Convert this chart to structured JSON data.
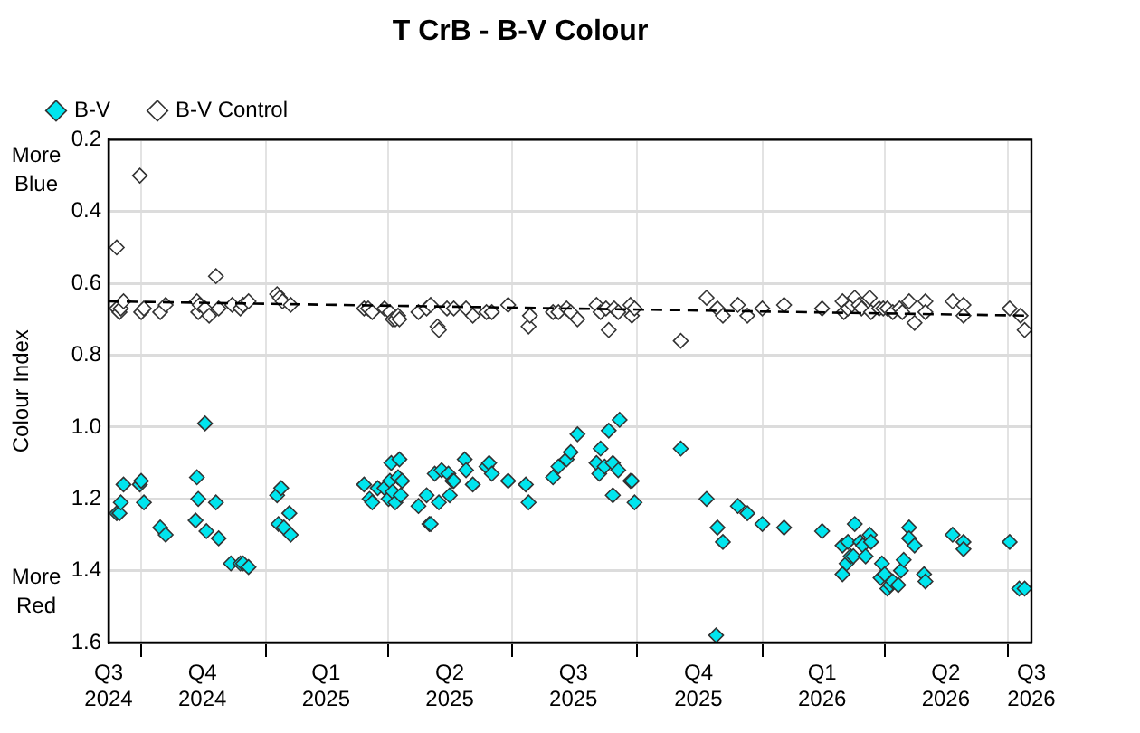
{
  "chart_data": {
    "type": "scatter",
    "title": "T CrB - B-V Colour",
    "ylabel": "Colour Index",
    "annotations": [
      "More Blue",
      "More Red"
    ],
    "xlim": [
      "2024-09-07",
      "2026-07-18"
    ],
    "xticks": [
      {
        "value": "2024-09-07",
        "label": "Q3 2024"
      },
      {
        "value": "2024-10-01",
        "label": null
      },
      {
        "value": "2024-11-15",
        "label": "Q4 2024"
      },
      {
        "value": "2025-01-01",
        "label": null
      },
      {
        "value": "2025-02-14",
        "label": "Q1 2025"
      },
      {
        "value": "2025-04-01",
        "label": null
      },
      {
        "value": "2025-05-16",
        "label": "Q2 2025"
      },
      {
        "value": "2025-07-01",
        "label": null
      },
      {
        "value": "2025-08-15",
        "label": "Q3 2025"
      },
      {
        "value": "2025-10-01",
        "label": null
      },
      {
        "value": "2025-11-15",
        "label": "Q4 2025"
      },
      {
        "value": "2026-01-01",
        "label": null
      },
      {
        "value": "2026-02-14",
        "label": "Q1 2026"
      },
      {
        "value": "2026-04-01",
        "label": null
      },
      {
        "value": "2026-05-16",
        "label": "Q2 2026"
      },
      {
        "value": "2026-07-01",
        "label": null
      },
      {
        "value": "2026-07-18",
        "label": "Q3 2026"
      }
    ],
    "ylim": [
      1.6,
      0.2
    ],
    "yticks": [
      0.2,
      0.4,
      0.6,
      0.8,
      {
        "value": 1,
        "label": "1.0"
      },
      1.2,
      1.4,
      1.6
    ],
    "grid": true,
    "legend": "top left",
    "marker": "diamond",
    "series": [
      {
        "name": "B-V",
        "color": "#00e5ee",
        "x": [
          "2024-09-13",
          "2024-09-15",
          "2024-09-16",
          "2024-09-18",
          "2024-09-30",
          "2024-10-01",
          "2024-10-03",
          "2024-10-15",
          "2024-10-19",
          "2024-11-10",
          "2024-11-11",
          "2024-11-12",
          "2024-11-17",
          "2024-11-18",
          "2024-11-25",
          "2024-11-27",
          "2024-12-06",
          "2024-12-13",
          "2024-12-15",
          "2024-12-19",
          "2025-01-09",
          "2025-01-10",
          "2025-01-12",
          "2025-01-14",
          "2025-01-18",
          "2025-01-19",
          "2025-03-14",
          "2025-03-18",
          "2025-03-20",
          "2025-03-24",
          "2025-03-29",
          "2025-04-01",
          "2025-04-02",
          "2025-04-03",
          "2025-04-04",
          "2025-04-06",
          "2025-04-08",
          "2025-04-09",
          "2025-04-10",
          "2025-04-11",
          "2025-04-23",
          "2025-04-29",
          "2025-05-01",
          "2025-05-02",
          "2025-05-05",
          "2025-05-08",
          "2025-05-10",
          "2025-05-15",
          "2025-05-16",
          "2025-05-18",
          "2025-05-19",
          "2025-05-27",
          "2025-05-28",
          "2025-06-02",
          "2025-06-12",
          "2025-06-14",
          "2025-06-16",
          "2025-06-28",
          "2025-07-11",
          "2025-07-13",
          "2025-07-31",
          "2025-08-04",
          "2025-08-10",
          "2025-08-13",
          "2025-08-18",
          "2025-09-01",
          "2025-09-03",
          "2025-09-04",
          "2025-09-07",
          "2025-09-10",
          "2025-09-13",
          "2025-09-13",
          "2025-09-17",
          "2025-09-18",
          "2025-09-26",
          "2025-09-27",
          "2025-09-29",
          "2025-11-02",
          "2025-11-21",
          "2025-11-28",
          "2025-11-29",
          "2025-12-03",
          "2025-12-14",
          "2025-12-21",
          "2026-01-01",
          "2026-01-17",
          "2026-02-14",
          "2026-03-01",
          "2026-03-01",
          "2026-03-04",
          "2026-03-05",
          "2026-03-07",
          "2026-03-09",
          "2026-03-10",
          "2026-03-14",
          "2026-03-16",
          "2026-03-18",
          "2026-03-21",
          "2026-03-22",
          "2026-03-29",
          "2026-03-30",
          "2026-04-01",
          "2026-04-03",
          "2026-04-05",
          "2026-04-07",
          "2026-04-11",
          "2026-04-13",
          "2026-04-15",
          "2026-04-19",
          "2026-04-19",
          "2026-04-23",
          "2026-04-30",
          "2026-05-01",
          "2026-05-21",
          "2026-05-29",
          "2026-05-29",
          "2026-07-02",
          "2026-07-09",
          "2026-07-13"
        ],
        "values": [
          1.24,
          1.24,
          1.21,
          1.16,
          1.16,
          1.15,
          1.21,
          1.28,
          1.3,
          1.26,
          1.14,
          1.2,
          0.99,
          1.29,
          1.21,
          1.31,
          1.38,
          1.38,
          1.38,
          1.39,
          1.19,
          1.27,
          1.17,
          1.28,
          1.24,
          1.3,
          1.16,
          1.2,
          1.21,
          1.17,
          1.17,
          1.2,
          1.15,
          1.1,
          1.18,
          1.21,
          1.14,
          1.09,
          1.19,
          1.15,
          1.22,
          1.19,
          1.27,
          1.27,
          1.13,
          1.21,
          1.12,
          1.13,
          1.19,
          1.15,
          1.15,
          1.09,
          1.12,
          1.16,
          1.11,
          1.1,
          1.13,
          1.15,
          1.16,
          1.21,
          1.14,
          1.11,
          1.09,
          1.07,
          1.02,
          1.1,
          1.13,
          1.06,
          1.11,
          1.01,
          1.1,
          1.19,
          1.12,
          0.98,
          1.15,
          1.15,
          1.21,
          1.06,
          1.2,
          1.58,
          1.28,
          1.32,
          1.22,
          1.24,
          1.27,
          1.28,
          1.29,
          1.33,
          1.41,
          1.38,
          1.32,
          1.36,
          1.36,
          1.27,
          1.32,
          1.33,
          1.36,
          1.3,
          1.32,
          1.42,
          1.38,
          1.41,
          1.45,
          1.44,
          1.43,
          1.44,
          1.4,
          1.37,
          1.28,
          1.31,
          1.33,
          1.41,
          1.43,
          1.3,
          1.32,
          1.34,
          1.32,
          1.45,
          1.45
        ]
      },
      {
        "name": "B-V Control",
        "color": "#ffffff",
        "x": [
          "2024-09-13",
          "2024-09-13",
          "2024-09-15",
          "2024-09-16",
          "2024-09-18",
          "2024-09-30",
          "2024-10-01",
          "2024-10-03",
          "2024-10-15",
          "2024-10-19",
          "2024-11-11",
          "2024-11-12",
          "2024-11-13",
          "2024-11-17",
          "2024-11-20",
          "2024-11-25",
          "2024-11-27",
          "2024-12-07",
          "2024-12-13",
          "2024-12-15",
          "2024-12-19",
          "2025-01-09",
          "2025-01-11",
          "2025-01-13",
          "2025-01-19",
          "2025-03-14",
          "2025-03-17",
          "2025-03-20",
          "2025-03-29",
          "2025-04-02",
          "2025-04-04",
          "2025-04-06",
          "2025-04-08",
          "2025-04-09",
          "2025-04-23",
          "2025-04-29",
          "2025-05-02",
          "2025-05-07",
          "2025-05-08",
          "2025-05-14",
          "2025-05-19",
          "2025-05-28",
          "2025-06-02",
          "2025-06-12",
          "2025-06-16",
          "2025-06-28",
          "2025-07-13",
          "2025-07-14",
          "2025-07-31",
          "2025-08-04",
          "2025-08-10",
          "2025-08-13",
          "2025-08-18",
          "2025-09-01",
          "2025-09-04",
          "2025-09-08",
          "2025-09-10",
          "2025-09-14",
          "2025-09-17",
          "2025-09-26",
          "2025-09-27",
          "2025-09-29",
          "2025-11-02",
          "2025-11-21",
          "2025-11-29",
          "2025-12-03",
          "2025-12-14",
          "2025-12-21",
          "2026-01-01",
          "2026-01-17",
          "2026-02-14",
          "2026-03-01",
          "2026-03-02",
          "2026-03-05",
          "2026-03-08",
          "2026-03-10",
          "2026-03-13",
          "2026-03-15",
          "2026-03-21",
          "2026-03-22",
          "2026-03-28",
          "2026-03-31",
          "2026-04-03",
          "2026-04-07",
          "2026-04-12",
          "2026-04-14",
          "2026-04-19",
          "2026-04-23",
          "2026-05-01",
          "2026-05-01",
          "2026-05-21",
          "2026-05-29",
          "2026-05-29",
          "2026-07-02",
          "2026-07-10",
          "2026-07-13"
        ],
        "values": [
          0.67,
          0.5,
          0.68,
          0.67,
          0.65,
          0.3,
          0.68,
          0.67,
          0.68,
          0.66,
          0.65,
          0.68,
          0.66,
          0.67,
          0.69,
          0.58,
          0.67,
          0.66,
          0.67,
          0.66,
          0.65,
          0.63,
          0.64,
          0.65,
          0.66,
          0.67,
          0.67,
          0.68,
          0.67,
          0.68,
          0.7,
          0.7,
          0.69,
          0.7,
          0.68,
          0.67,
          0.66,
          0.72,
          0.73,
          0.67,
          0.67,
          0.67,
          0.69,
          0.68,
          0.68,
          0.66,
          0.72,
          0.69,
          0.68,
          0.68,
          0.67,
          0.68,
          0.7,
          0.66,
          0.68,
          0.67,
          0.73,
          0.67,
          0.68,
          0.66,
          0.69,
          0.67,
          0.76,
          0.64,
          0.67,
          0.69,
          0.66,
          0.69,
          0.67,
          0.66,
          0.67,
          0.65,
          0.68,
          0.67,
          0.66,
          0.64,
          0.66,
          0.67,
          0.64,
          0.68,
          0.67,
          0.67,
          0.67,
          0.68,
          0.67,
          0.68,
          0.65,
          0.71,
          0.65,
          0.68,
          0.65,
          0.66,
          0.69,
          0.67,
          0.69,
          0.73
        ]
      },
      {
        "type": "line",
        "color": "#000000",
        "marker": "none",
        "line_style": "dashed",
        "x": [
          "2024-09-07",
          "2026-07-18"
        ],
        "values": [
          0.65,
          0.69
        ]
      }
    ]
  }
}
